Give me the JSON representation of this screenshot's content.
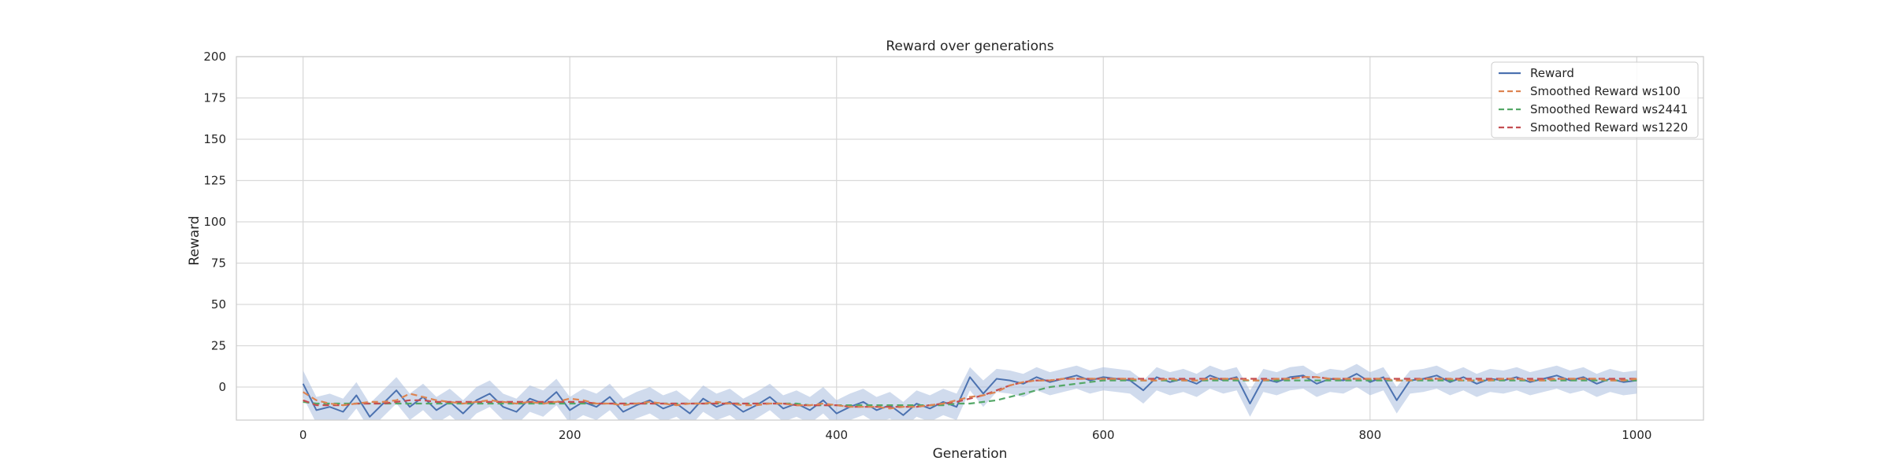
{
  "chart_data": {
    "type": "line",
    "title": "Reward over generations",
    "xlabel": "Generation",
    "ylabel": "Reward",
    "xlim": [
      -50,
      1050
    ],
    "ylim": [
      -20,
      200
    ],
    "xticks": [
      0,
      200,
      400,
      600,
      800,
      1000
    ],
    "yticks": [
      0,
      25,
      50,
      75,
      100,
      125,
      150,
      175,
      200
    ],
    "grid": true,
    "legend_position": "top-right",
    "colors": {
      "reward": "#4c72b0",
      "band": "#a9bddf",
      "ws100": "#dd8452",
      "ws2441": "#55a868",
      "ws1220": "#c44e52",
      "grid": "#d9d9d9",
      "spine": "#cccccc"
    },
    "series": [
      {
        "name": "Reward",
        "style": "solid",
        "color": "#4c72b0",
        "x": [
          0,
          10,
          20,
          30,
          40,
          50,
          60,
          70,
          80,
          90,
          100,
          110,
          120,
          130,
          140,
          150,
          160,
          170,
          180,
          190,
          200,
          210,
          220,
          230,
          240,
          250,
          260,
          270,
          280,
          290,
          300,
          310,
          320,
          330,
          340,
          350,
          360,
          370,
          380,
          390,
          400,
          410,
          420,
          430,
          440,
          450,
          460,
          470,
          480,
          490,
          500,
          510,
          520,
          530,
          540,
          550,
          560,
          570,
          580,
          590,
          600,
          610,
          620,
          630,
          640,
          650,
          660,
          670,
          680,
          690,
          700,
          710,
          720,
          730,
          740,
          750,
          760,
          770,
          780,
          790,
          800,
          810,
          820,
          830,
          840,
          850,
          860,
          870,
          880,
          890,
          900,
          910,
          920,
          930,
          940,
          950,
          960,
          970,
          980,
          990,
          1000
        ],
        "values": [
          2,
          -14,
          -12,
          -15,
          -5,
          -18,
          -10,
          -2,
          -12,
          -6,
          -14,
          -9,
          -16,
          -8,
          -4,
          -12,
          -15,
          -7,
          -10,
          -3,
          -14,
          -9,
          -12,
          -6,
          -15,
          -11,
          -8,
          -13,
          -10,
          -16,
          -7,
          -12,
          -9,
          -15,
          -11,
          -6,
          -13,
          -10,
          -14,
          -8,
          -16,
          -12,
          -9,
          -14,
          -11,
          -17,
          -10,
          -13,
          -9,
          -12,
          6,
          -4,
          5,
          4,
          2,
          6,
          3,
          5,
          7,
          4,
          6,
          5,
          4,
          -2,
          6,
          3,
          5,
          2,
          7,
          4,
          6,
          -10,
          5,
          3,
          6,
          7,
          2,
          5,
          4,
          8,
          3,
          6,
          -8,
          4,
          5,
          7,
          3,
          6,
          2,
          5,
          4,
          6,
          3,
          5,
          7,
          4,
          6,
          2,
          5,
          3,
          4
        ],
        "band_lower": [
          -6,
          -22,
          -20,
          -23,
          -13,
          -26,
          -18,
          -10,
          -20,
          -14,
          -22,
          -17,
          -24,
          -16,
          -12,
          -20,
          -23,
          -15,
          -18,
          -11,
          -22,
          -17,
          -20,
          -14,
          -23,
          -19,
          -16,
          -21,
          -18,
          -24,
          -15,
          -20,
          -17,
          -23,
          -19,
          -14,
          -21,
          -18,
          -22,
          -16,
          -24,
          -20,
          -17,
          -22,
          -19,
          -25,
          -18,
          -21,
          -17,
          -20,
          -2,
          -12,
          -3,
          -4,
          -6,
          -2,
          -5,
          -3,
          -1,
          -4,
          -2,
          -3,
          -4,
          -10,
          -2,
          -5,
          -3,
          -6,
          -1,
          -4,
          -2,
          -18,
          -3,
          -5,
          -2,
          -1,
          -6,
          -3,
          -4,
          0,
          -5,
          -2,
          -16,
          -4,
          -3,
          -1,
          -5,
          -2,
          -6,
          -3,
          -4,
          -2,
          -5,
          -3,
          -1,
          -4,
          -2,
          -6,
          -3,
          -5,
          -4
        ],
        "band_upper": [
          10,
          -6,
          -4,
          -7,
          3,
          -10,
          -2,
          6,
          -4,
          2,
          -6,
          -1,
          -8,
          0,
          4,
          -4,
          -7,
          1,
          -2,
          5,
          -6,
          -1,
          -4,
          2,
          -7,
          -3,
          0,
          -5,
          -2,
          -8,
          1,
          -4,
          -1,
          -7,
          -3,
          2,
          -5,
          -2,
          -6,
          0,
          -8,
          -4,
          -1,
          -6,
          -3,
          -9,
          -2,
          -5,
          -1,
          -4,
          12,
          4,
          11,
          10,
          8,
          12,
          9,
          11,
          13,
          10,
          12,
          11,
          10,
          4,
          12,
          9,
          11,
          8,
          13,
          10,
          12,
          -2,
          11,
          9,
          12,
          13,
          8,
          11,
          10,
          14,
          9,
          12,
          0,
          10,
          11,
          13,
          9,
          12,
          8,
          11,
          10,
          12,
          9,
          11,
          13,
          10,
          12,
          8,
          11,
          9,
          10
        ]
      },
      {
        "name": "Smoothed Reward ws100",
        "style": "dashed",
        "color": "#dd8452",
        "x": [
          0,
          10,
          20,
          30,
          40,
          50,
          60,
          70,
          80,
          90,
          100,
          110,
          120,
          130,
          140,
          150,
          160,
          170,
          180,
          190,
          200,
          210,
          220,
          230,
          240,
          250,
          260,
          270,
          280,
          290,
          300,
          310,
          320,
          330,
          340,
          350,
          360,
          370,
          380,
          390,
          400,
          410,
          420,
          430,
          440,
          450,
          460,
          470,
          480,
          490,
          500,
          510,
          520,
          530,
          540,
          550,
          560,
          570,
          580,
          590,
          600,
          610,
          620,
          630,
          640,
          650,
          660,
          670,
          680,
          690,
          700,
          710,
          720,
          730,
          740,
          750,
          760,
          770,
          780,
          790,
          800,
          810,
          820,
          830,
          840,
          850,
          860,
          870,
          880,
          890,
          900,
          910,
          920,
          930,
          940,
          950,
          960,
          970,
          980,
          990,
          1000
        ],
        "values": [
          -3,
          -8,
          -10,
          -11,
          -10,
          -9,
          -9,
          -8,
          -4,
          -6,
          -8,
          -9,
          -10,
          -9,
          -8,
          -9,
          -10,
          -9,
          -10,
          -9,
          -7,
          -8,
          -10,
          -10,
          -11,
          -10,
          -9,
          -10,
          -11,
          -10,
          -10,
          -9,
          -10,
          -11,
          -11,
          -10,
          -10,
          -11,
          -11,
          -10,
          -11,
          -12,
          -12,
          -12,
          -13,
          -12,
          -12,
          -11,
          -10,
          -8,
          -6,
          -5,
          -3,
          1,
          3,
          4,
          4,
          5,
          5,
          5,
          5,
          5,
          5,
          4,
          4,
          5,
          4,
          4,
          5,
          5,
          5,
          4,
          4,
          5,
          5,
          6,
          6,
          5,
          5,
          5,
          5,
          5,
          4,
          4,
          5,
          5,
          5,
          4,
          4,
          4,
          5,
          5,
          4,
          4,
          5,
          5,
          5,
          5,
          4,
          4,
          5
        ]
      },
      {
        "name": "Smoothed Reward ws2441",
        "style": "dashed",
        "color": "#55a868",
        "x": [
          0,
          10,
          20,
          30,
          40,
          50,
          60,
          70,
          80,
          90,
          100,
          110,
          120,
          130,
          140,
          150,
          160,
          170,
          180,
          190,
          200,
          210,
          220,
          230,
          240,
          250,
          260,
          270,
          280,
          290,
          300,
          310,
          320,
          330,
          340,
          350,
          360,
          370,
          380,
          390,
          400,
          410,
          420,
          430,
          440,
          450,
          460,
          470,
          480,
          490,
          500,
          510,
          520,
          530,
          540,
          550,
          560,
          570,
          580,
          590,
          600,
          610,
          620,
          630,
          640,
          650,
          660,
          670,
          680,
          690,
          700,
          710,
          720,
          730,
          740,
          750,
          760,
          770,
          780,
          790,
          800,
          810,
          820,
          830,
          840,
          850,
          860,
          870,
          880,
          890,
          900,
          910,
          920,
          930,
          940,
          950,
          960,
          970,
          980,
          990,
          1000
        ],
        "values": [
          -9,
          -10,
          -10,
          -10,
          -10,
          -10,
          -10,
          -10,
          -10,
          -10,
          -10,
          -10,
          -10,
          -10,
          -10,
          -10,
          -10,
          -10,
          -10,
          -10,
          -10,
          -10,
          -10,
          -10,
          -10,
          -10,
          -10,
          -10,
          -10,
          -10,
          -10,
          -10,
          -10,
          -10,
          -10,
          -10,
          -10,
          -10,
          -11,
          -11,
          -11,
          -11,
          -11,
          -11,
          -11,
          -11,
          -11,
          -11,
          -11,
          -10,
          -10,
          -9,
          -8,
          -6,
          -4,
          -2,
          0,
          1,
          2,
          3,
          4,
          4,
          4,
          4,
          4,
          4,
          4,
          4,
          4,
          4,
          4,
          4,
          4,
          4,
          4,
          4,
          4,
          4,
          4,
          4,
          4,
          4,
          4,
          4,
          4,
          4,
          4,
          4,
          4,
          4,
          4,
          4,
          4,
          4,
          4,
          4,
          4,
          4,
          4,
          4,
          4
        ]
      },
      {
        "name": "Smoothed Reward ws1220",
        "style": "dashed",
        "color": "#c44e52",
        "x": [
          0,
          10,
          20,
          30,
          40,
          50,
          60,
          70,
          80,
          90,
          100,
          110,
          120,
          130,
          140,
          150,
          160,
          170,
          180,
          190,
          200,
          210,
          220,
          230,
          240,
          250,
          260,
          270,
          280,
          290,
          300,
          310,
          320,
          330,
          340,
          350,
          360,
          370,
          380,
          390,
          400,
          410,
          420,
          430,
          440,
          450,
          460,
          470,
          480,
          490,
          500,
          510,
          520,
          530,
          540,
          550,
          560,
          570,
          580,
          590,
          600,
          610,
          620,
          630,
          640,
          650,
          660,
          670,
          680,
          690,
          700,
          710,
          720,
          730,
          740,
          750,
          760,
          770,
          780,
          790,
          800,
          810,
          820,
          830,
          840,
          850,
          860,
          870,
          880,
          890,
          900,
          910,
          920,
          930,
          940,
          950,
          960,
          970,
          980,
          990,
          1000
        ],
        "values": [
          -8,
          -11,
          -11,
          -11,
          -10,
          -10,
          -10,
          -9,
          -8,
          -8,
          -9,
          -9,
          -9,
          -9,
          -9,
          -9,
          -9,
          -9,
          -9,
          -9,
          -9,
          -9,
          -10,
          -10,
          -10,
          -10,
          -10,
          -10,
          -10,
          -10,
          -10,
          -10,
          -10,
          -10,
          -10,
          -10,
          -10,
          -11,
          -11,
          -11,
          -11,
          -12,
          -12,
          -12,
          -12,
          -12,
          -12,
          -11,
          -10,
          -9,
          -7,
          -5,
          -2,
          1,
          3,
          4,
          4,
          5,
          5,
          5,
          5,
          5,
          5,
          5,
          5,
          5,
          5,
          5,
          5,
          5,
          5,
          5,
          5,
          5,
          5,
          6,
          6,
          5,
          5,
          5,
          5,
          5,
          5,
          5,
          5,
          5,
          5,
          5,
          5,
          5,
          5,
          5,
          5,
          5,
          5,
          5,
          5,
          5,
          5,
          5,
          5
        ]
      }
    ]
  }
}
